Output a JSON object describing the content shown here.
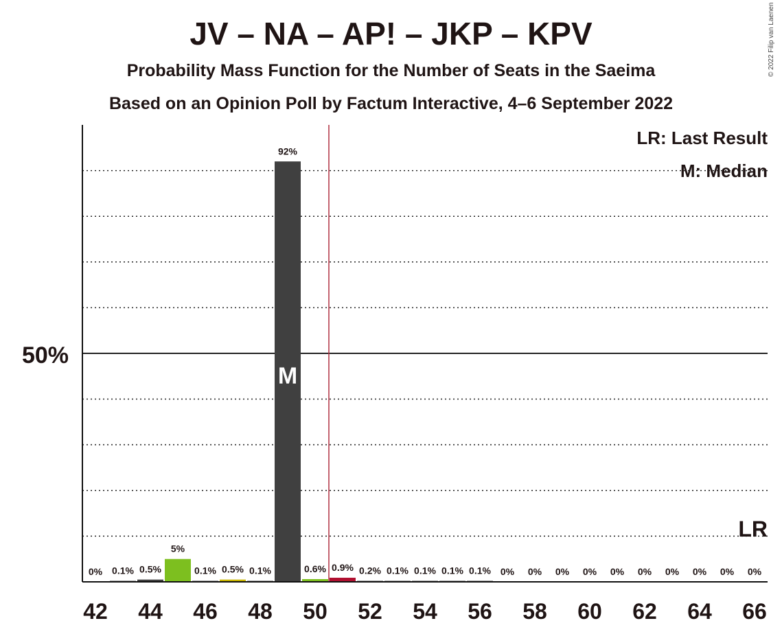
{
  "title": "JV – NA – AP! – JKP – KPV",
  "subtitle": "Probability Mass Function for the Number of Seats in the Saeima",
  "subtitle2": "Based on an Opinion Poll by Factum Interactive, 4–6 September 2022",
  "copyright": "© 2022 Filip van Laenen",
  "legend": {
    "lr": "LR: Last Result",
    "m": "M: Median"
  },
  "marks": {
    "median_label": "M",
    "last_result_label": "LR"
  },
  "colors": {
    "dark": "#404040",
    "green": "#7dbf1f",
    "olive": "#c8b400",
    "red": "#b01030",
    "lr_line": "#b03040"
  },
  "chart_data": {
    "type": "bar",
    "categories": [
      42,
      43,
      44,
      45,
      46,
      47,
      48,
      49,
      50,
      51,
      52,
      53,
      54,
      55,
      56,
      57,
      58,
      59,
      60,
      61,
      62,
      63,
      64,
      65,
      66
    ],
    "values": [
      0,
      0.1,
      0.5,
      5,
      0.1,
      0.5,
      0.1,
      92,
      0.6,
      0.9,
      0.2,
      0.1,
      0.1,
      0.1,
      0.1,
      0,
      0,
      0,
      0,
      0,
      0,
      0,
      0,
      0,
      0
    ],
    "value_labels": [
      "0%",
      "0.1%",
      "0.5%",
      "5%",
      "0.1%",
      "0.5%",
      "0.1%",
      "92%",
      "0.6%",
      "0.9%",
      "0.2%",
      "0.1%",
      "0.1%",
      "0.1%",
      "0.1%",
      "0%",
      "0%",
      "0%",
      "0%",
      "0%",
      "0%",
      "0%",
      "0%",
      "0%",
      "0%"
    ],
    "bar_colors": [
      "#404040",
      "#404040",
      "#404040",
      "#7dbf1f",
      "#404040",
      "#c8b400",
      "#404040",
      "#404040",
      "#7dbf1f",
      "#b01030",
      "#404040",
      "#404040",
      "#404040",
      "#404040",
      "#404040",
      "#404040",
      "#404040",
      "#404040",
      "#404040",
      "#404040",
      "#404040",
      "#404040",
      "#404040",
      "#404040",
      "#404040"
    ],
    "x_tick_labels": [
      "42",
      "44",
      "46",
      "48",
      "50",
      "52",
      "54",
      "56",
      "58",
      "60",
      "62",
      "64",
      "66"
    ],
    "y_tick_label": "50%",
    "ylim": [
      0,
      100
    ],
    "median": 49,
    "last_result": 50.5,
    "grid": "dotted every 10%, solid at 50%"
  }
}
